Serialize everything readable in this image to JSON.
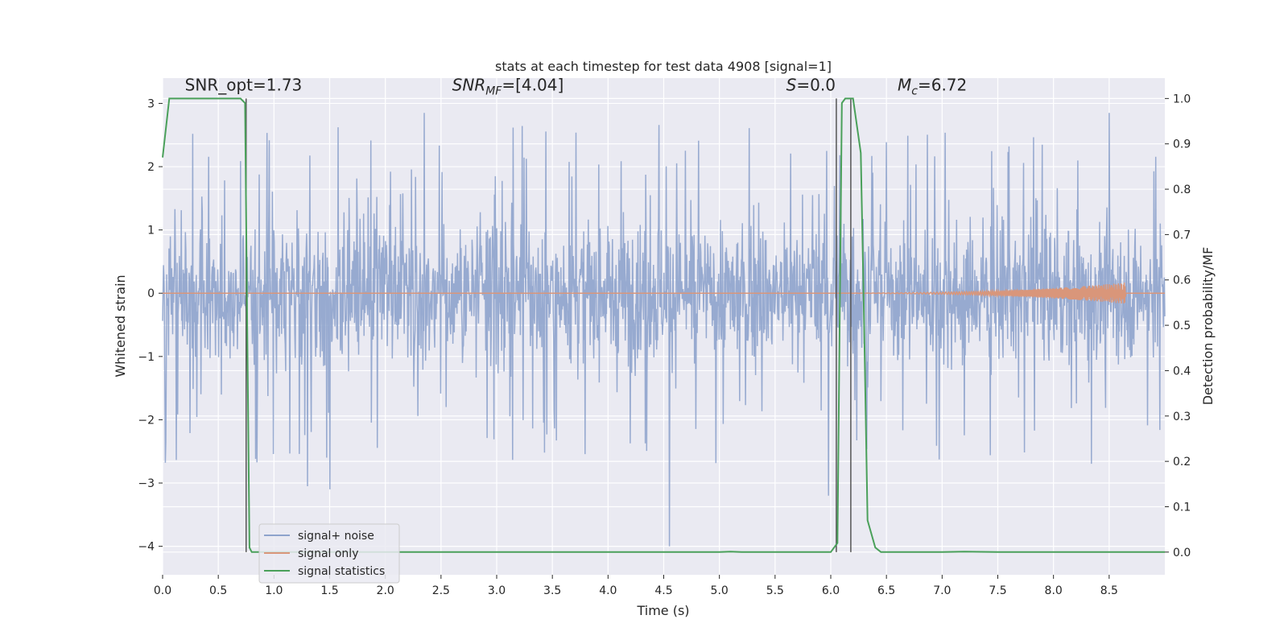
{
  "chart_data": {
    "type": "line",
    "title": "stats at each timestep for test data 4908 [signal=1]",
    "xlabel": "Time (s)",
    "ylabel": "Whitened strain",
    "y2label": "Detection probability/MF",
    "xlim": [
      0.0,
      9.0
    ],
    "ylim": [
      -4.45,
      3.4
    ],
    "y2lim": [
      -0.05,
      1.045
    ],
    "xticks": [
      0.0,
      0.5,
      1.0,
      1.5,
      2.0,
      2.5,
      3.0,
      3.5,
      4.0,
      4.5,
      5.0,
      5.5,
      6.0,
      6.5,
      7.0,
      7.5,
      8.0,
      8.5
    ],
    "yticks": [
      -4,
      -3,
      -2,
      -1,
      0,
      1,
      2,
      3
    ],
    "y2ticks": [
      0.0,
      0.1,
      0.2,
      0.3,
      0.4,
      0.5,
      0.6,
      0.7,
      0.8,
      0.9,
      1.0
    ],
    "grid": true,
    "legend_position": "lower-left",
    "colors": {
      "noise": "#8ea3cc",
      "signal": "#d9967a",
      "stats": "#4aa05a",
      "vline": "#555555",
      "plot_bg": "#eaeaf2",
      "grid": "#ffffff"
    },
    "annotations": [
      {
        "x": 0.2,
        "y": 3.2,
        "text": "SNR_opt=1.73",
        "italic": false
      },
      {
        "x": 2.6,
        "y": 3.2,
        "text": "SNR_MF=[4.04]",
        "italic": true
      },
      {
        "x": 5.6,
        "y": 3.2,
        "text": "S=0.0",
        "italic": true
      },
      {
        "x": 6.6,
        "y": 3.2,
        "text": "M_c=6.72",
        "italic": true
      }
    ],
    "vlines": [
      0.75,
      6.05,
      6.18
    ],
    "noise_envelope": {
      "x_range": [
        0.0,
        9.0
      ],
      "typical_abs_max": 1.2,
      "peak_max": 3.0,
      "peak_min": -4.0,
      "notable_spikes": [
        {
          "x": 4.55,
          "y": -4.0
        },
        {
          "x": 5.98,
          "y": -3.2
        },
        {
          "x": 1.3,
          "y": -3.05
        },
        {
          "x": 1.5,
          "y": -3.1
        },
        {
          "x": 2.35,
          "y": 2.85
        },
        {
          "x": 8.5,
          "y": 2.85
        }
      ]
    },
    "signal_only": {
      "x_start": 5.6,
      "x_end": 8.65,
      "peak_amplitude": 0.17
    },
    "series": [
      {
        "name": "signal statistics",
        "axis": "right",
        "x": [
          0.0,
          0.06,
          0.1,
          0.2,
          0.3,
          0.4,
          0.5,
          0.6,
          0.7,
          0.74,
          0.76,
          0.78,
          0.8,
          0.85,
          0.9,
          1.0,
          2.0,
          3.0,
          4.0,
          5.0,
          5.1,
          5.2,
          5.5,
          6.0,
          6.06,
          6.1,
          6.13,
          6.2,
          6.27,
          6.3,
          6.33,
          6.4,
          6.45,
          6.5,
          6.6,
          7.0,
          7.2,
          7.5,
          8.0,
          9.0
        ],
        "y": [
          0.87,
          1.0,
          1.0,
          1.0,
          1.0,
          1.0,
          1.0,
          1.0,
          1.0,
          0.99,
          0.5,
          0.01,
          0.0,
          0.0,
          0.0,
          0.0,
          0.0,
          0.0,
          0.0,
          0.0,
          0.001,
          0.0,
          0.0,
          0.0,
          0.02,
          0.99,
          1.0,
          1.0,
          0.88,
          0.5,
          0.07,
          0.01,
          0.0,
          0.0,
          0.0,
          0.0,
          0.001,
          0.0,
          0.0,
          0.0
        ]
      }
    ],
    "legend": [
      "signal+ noise",
      "signal only",
      "signal statistics"
    ]
  }
}
